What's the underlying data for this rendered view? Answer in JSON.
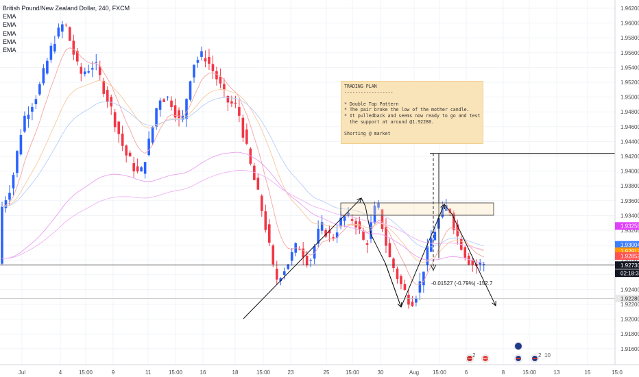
{
  "chart_data": {
    "type": "candlestick",
    "title": "British Pound/New Zealand Dollar, 240, FXCM",
    "indicators": [
      "EMA",
      "EMA",
      "EMA",
      "EMA",
      "EMA"
    ],
    "y_axis": {
      "ticks": [
        "1.96200",
        "1.96000",
        "1.95800",
        "1.95600",
        "1.95400",
        "1.95200",
        "1.95000",
        "1.94800",
        "1.94600",
        "1.94400",
        "1.94200",
        "1.94000",
        "1.93800",
        "1.93600",
        "1.93400",
        "1.93200",
        "1.93000",
        "1.92800",
        "1.92600",
        "1.92400",
        "1.92200",
        "1.92000",
        "1.91800",
        "1.91600"
      ],
      "ylim": [
        1.9152,
        1.9633
      ]
    },
    "x_axis": {
      "ticks": [
        "Jul",
        "4",
        "15:00",
        "9",
        "11",
        "15:00",
        "16",
        "18",
        "15:00",
        "23",
        "25",
        "15:00",
        "30",
        "Aug",
        "15:00",
        "6",
        "8",
        "15:00",
        "13",
        "15",
        "15:0"
      ]
    },
    "price_labels": [
      {
        "text": "1.93258",
        "value": 1.93258,
        "color": "#e040fb"
      },
      {
        "text": "1.93004",
        "value": 1.93004,
        "color": "#3d7eff"
      },
      {
        "text": "1.92917",
        "value": 1.92917,
        "color": "#ff9800"
      },
      {
        "text": "1.92852",
        "value": 1.92852,
        "color": "#ff5252"
      },
      {
        "text": "1.92730",
        "value": 1.9273,
        "color": "#131722"
      },
      {
        "text": "02:18:30",
        "value": 1.9262,
        "color": "#131722"
      },
      {
        "text": "1.92280",
        "value": 1.9228,
        "color": "#e8e8e8"
      }
    ],
    "measure_label": "-0.01527 (-0.79%) -152.7",
    "trading_plan": "TRADING PLAN\n------------------\n\n* Double Top Pattern\n* The pair broke the low of the mother candle.\n* It pulledback and seems now ready to go and test again\n  the support at around @1.92280.\n\nShorting @ market",
    "event_badges": [
      "2",
      "2",
      "10"
    ],
    "colors": {
      "up": "#2962ff",
      "down": "#f23645"
    }
  }
}
